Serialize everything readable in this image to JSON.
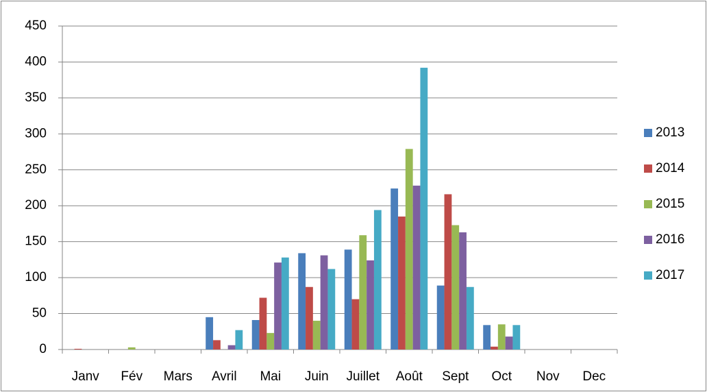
{
  "chart_data": {
    "type": "bar",
    "categories": [
      "Janv",
      "Fév",
      "Mars",
      "Avril",
      "Mai",
      "Juin",
      "Juillet",
      "Août",
      "Sept",
      "Oct",
      "Nov",
      "Dec"
    ],
    "series": [
      {
        "name": "2013",
        "color": "#4a7ebb",
        "values": [
          0,
          0,
          0,
          45,
          41,
          134,
          139,
          224,
          89,
          34,
          0,
          0
        ]
      },
      {
        "name": "2014",
        "color": "#be4b48",
        "values": [
          1,
          0,
          0,
          13,
          72,
          87,
          70,
          185,
          216,
          4,
          0,
          0
        ]
      },
      {
        "name": "2015",
        "color": "#98b954",
        "values": [
          0,
          3,
          0,
          0,
          23,
          40,
          159,
          279,
          173,
          35,
          0,
          0
        ]
      },
      {
        "name": "2016",
        "color": "#7d60a0",
        "values": [
          0,
          0,
          0,
          6,
          121,
          131,
          124,
          228,
          163,
          18,
          0,
          0
        ]
      },
      {
        "name": "2017",
        "color": "#46aac5",
        "values": [
          0,
          0,
          0,
          27,
          128,
          112,
          194,
          392,
          87,
          34,
          0,
          0
        ]
      }
    ],
    "ylim": [
      0,
      450
    ],
    "yticks": [
      0,
      50,
      100,
      150,
      200,
      250,
      300,
      350,
      400,
      450
    ],
    "grid": true,
    "legend": "right"
  }
}
